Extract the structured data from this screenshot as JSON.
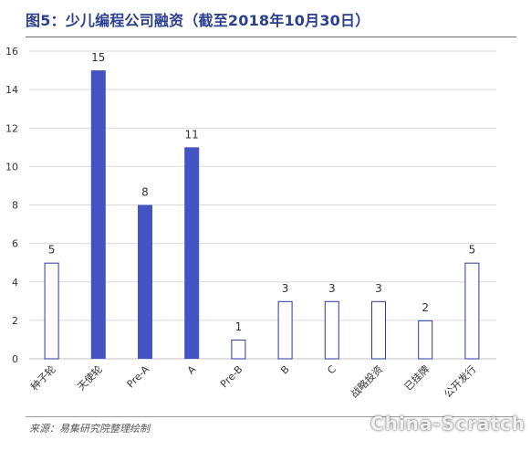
{
  "header": {
    "title": "图5：少儿编程公司融资（截至2018年10月30日）"
  },
  "footer": {
    "source": "来源：易集研究院整理绘制"
  },
  "watermark": "China-Scratch",
  "colors": {
    "filled": "#4453c3",
    "outline": "#2b3aa0",
    "grid": "#d9d9d9",
    "text": "#333333"
  },
  "chart_data": {
    "type": "bar",
    "title": "图5：少儿编程公司融资（截至2018年10月30日）",
    "categories": [
      "种子轮",
      "天使轮",
      "Pre-A",
      "A",
      "Pre-B",
      "B",
      "C",
      "战略投资",
      "已挂牌",
      "公开发行"
    ],
    "values": [
      5,
      15,
      8,
      11,
      1,
      3,
      3,
      3,
      2,
      5
    ],
    "filled": [
      false,
      true,
      true,
      true,
      false,
      false,
      false,
      false,
      false,
      false
    ],
    "ylim": [
      0,
      16
    ],
    "yticks": [
      0,
      2,
      4,
      6,
      8,
      10,
      12,
      14,
      16
    ],
    "grid": true,
    "data_labels": true,
    "xlabel": "",
    "ylabel": ""
  }
}
